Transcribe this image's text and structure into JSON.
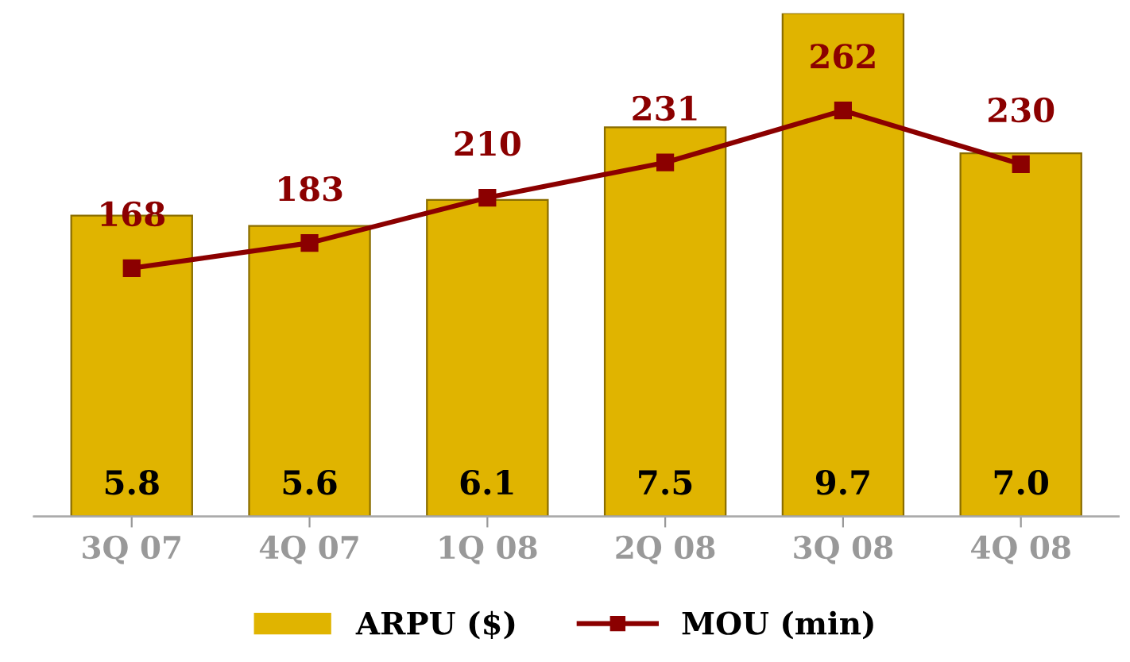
{
  "chart_data": {
    "type": "bar",
    "categories": [
      "3Q 07",
      "4Q 07",
      "1Q 08",
      "2Q 08",
      "3Q 08",
      "4Q 08"
    ],
    "series": [
      {
        "name": "ARPU ($)",
        "color": "#e0b400",
        "values": [
          5.8,
          5.6,
          6.1,
          7.5,
          9.7,
          7.0
        ],
        "value_labels": [
          "5.8",
          "5.6",
          "6.1",
          "7.5",
          "9.7",
          "7.0"
        ]
      },
      {
        "name": "MOU (min)",
        "type": "line",
        "axis": "y2",
        "color": "#8b0000",
        "values": [
          168,
          183,
          210,
          231,
          262,
          230
        ]
      }
    ],
    "ylim": [
      0,
      9.7
    ],
    "y2lim": [
      20,
      320
    ],
    "data_labels": true,
    "marker": "square",
    "line_style": "solid",
    "legend": "bottom",
    "grid": false,
    "tick_labels": "x"
  }
}
